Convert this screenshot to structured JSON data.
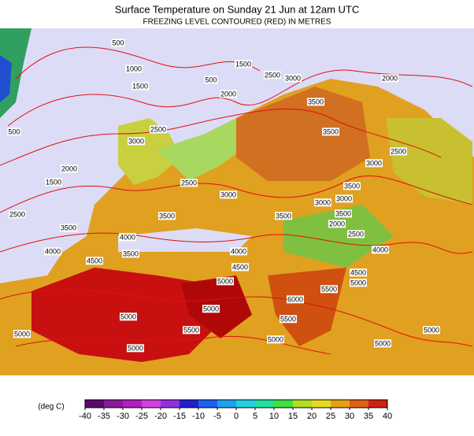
{
  "title": "Surface Temperature on Sunday 21 Jun at 12am UTC",
  "subtitle": "FREEZING LEVEL CONTOURED (RED) IN METRES",
  "contour_labels": [
    500,
    1000,
    1500,
    500,
    2000,
    1500,
    2500,
    3000,
    2000,
    3500,
    500,
    2500,
    3000,
    2000,
    1500,
    3500,
    2500,
    3000,
    2500,
    3000,
    3500,
    3000,
    3000,
    3500,
    2500,
    2000,
    2500,
    3500,
    3500,
    3500,
    4000,
    4000,
    3500,
    4000,
    4500,
    4000,
    4500,
    4500,
    5000,
    5000,
    5000,
    5500,
    6000,
    5000,
    5500,
    5500,
    5000,
    5000,
    5000,
    5000,
    5000
  ],
  "colorbar": {
    "label": "(deg C)",
    "ticks": [
      -40,
      -35,
      -30,
      -25,
      -20,
      -15,
      -10,
      -5,
      0,
      5,
      10,
      15,
      20,
      25,
      30,
      35,
      40
    ],
    "colors": [
      "#5a0a6e",
      "#8a1a9a",
      "#b020c0",
      "#d040e0",
      "#9030e0",
      "#2020d0",
      "#2060f0",
      "#20a0f0",
      "#20d0e0",
      "#20e0a0",
      "#40e040",
      "#b0e020",
      "#e8d820",
      "#e8a010",
      "#e06010",
      "#d02010"
    ]
  }
}
